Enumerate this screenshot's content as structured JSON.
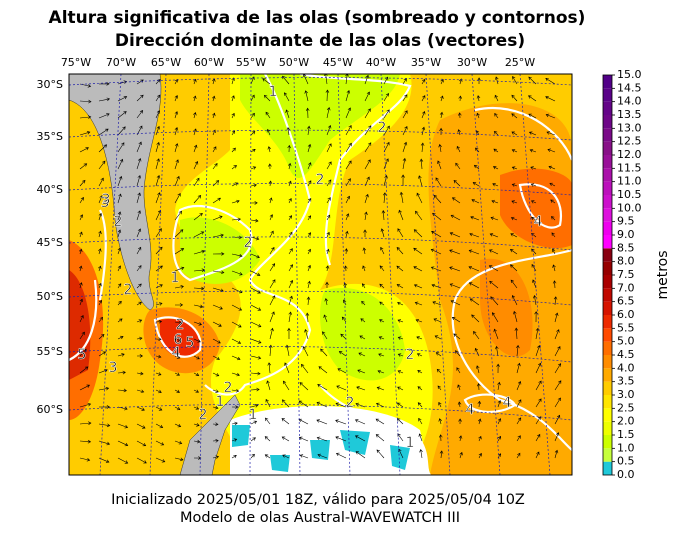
{
  "header": {
    "title_line1": "Altura significativa de las olas (sombreado y contornos)",
    "title_line2": "Dirección dominante de las olas (vectores)"
  },
  "map": {
    "lon_labels": [
      "75°W",
      "70°W",
      "65°W",
      "60°W",
      "55°W",
      "50°W",
      "45°W",
      "40°W",
      "35°W",
      "30°W",
      "25°W"
    ],
    "lat_labels": [
      "30°S",
      "35°S",
      "40°S",
      "45°S",
      "50°S",
      "55°S",
      "60°S"
    ],
    "contour_labels": [
      1,
      2,
      2,
      2,
      3,
      2,
      1,
      2,
      2,
      6,
      5,
      4,
      5,
      3,
      2,
      2,
      1,
      1,
      2,
      2,
      1,
      4,
      4,
      4,
      3
    ]
  },
  "colorbar": {
    "label": "metros",
    "lim": [
      0,
      15
    ],
    "colors": [
      "#1fc9d9",
      "#c6ff3c",
      "#ccff00",
      "#eeff00",
      "#ffff00",
      "#ffe600",
      "#ffcc00",
      "#ffaa00",
      "#ff8c00",
      "#ff6e00",
      "#ff4a00",
      "#ee2a00",
      "#d61400",
      "#c00800",
      "#aa0000",
      "#960000",
      "#880010",
      "#ff00ff",
      "#ee00ee",
      "#dd10dd",
      "#cc10cc",
      "#bb10bb",
      "#aa10aa",
      "#991099",
      "#881088",
      "#7a0a88",
      "#6e0688",
      "#640488",
      "#5a0288",
      "#520088"
    ],
    "ticks": [
      {
        "value": 0,
        "label": "0.0"
      },
      {
        "value": 0.5,
        "label": "0.5"
      },
      {
        "value": 1,
        "label": "1.0"
      },
      {
        "value": 1.5,
        "label": "1.5"
      },
      {
        "value": 2,
        "label": "2.0"
      },
      {
        "value": 2.5,
        "label": "2.5"
      },
      {
        "value": 3,
        "label": "3.0"
      },
      {
        "value": 3.5,
        "label": "3.5"
      },
      {
        "value": 4,
        "label": "4.0"
      },
      {
        "value": 4.5,
        "label": "4.5"
      },
      {
        "value": 5,
        "label": "5.0"
      },
      {
        "value": 5.5,
        "label": "5.5"
      },
      {
        "value": 6,
        "label": "6.0"
      },
      {
        "value": 6.5,
        "label": "6.5"
      },
      {
        "value": 7,
        "label": "7.0"
      },
      {
        "value": 7.5,
        "label": "7.5"
      },
      {
        "value": 8,
        "label": "8.0"
      },
      {
        "value": 8.5,
        "label": "8.5"
      },
      {
        "value": 9,
        "label": "9.0"
      },
      {
        "value": 9.5,
        "label": "9.5"
      },
      {
        "value": 10,
        "label": "10.0"
      },
      {
        "value": 10.5,
        "label": "10.5"
      },
      {
        "value": 11,
        "label": "11.0"
      },
      {
        "value": 11.5,
        "label": "11.5"
      },
      {
        "value": 12,
        "label": "12.0"
      },
      {
        "value": 12.5,
        "label": "12.5"
      },
      {
        "value": 13,
        "label": "13.0"
      },
      {
        "value": 13.5,
        "label": "13.5"
      },
      {
        "value": 14,
        "label": "14.0"
      },
      {
        "value": 14.5,
        "label": "14.5"
      },
      {
        "value": 15,
        "label": "15.0"
      }
    ]
  },
  "footer": {
    "line1": "Inicializado 2025/05/01 18Z, válido para 2025/05/04 10Z",
    "line2": "Modelo de olas Austral-WAVEWATCH III"
  }
}
